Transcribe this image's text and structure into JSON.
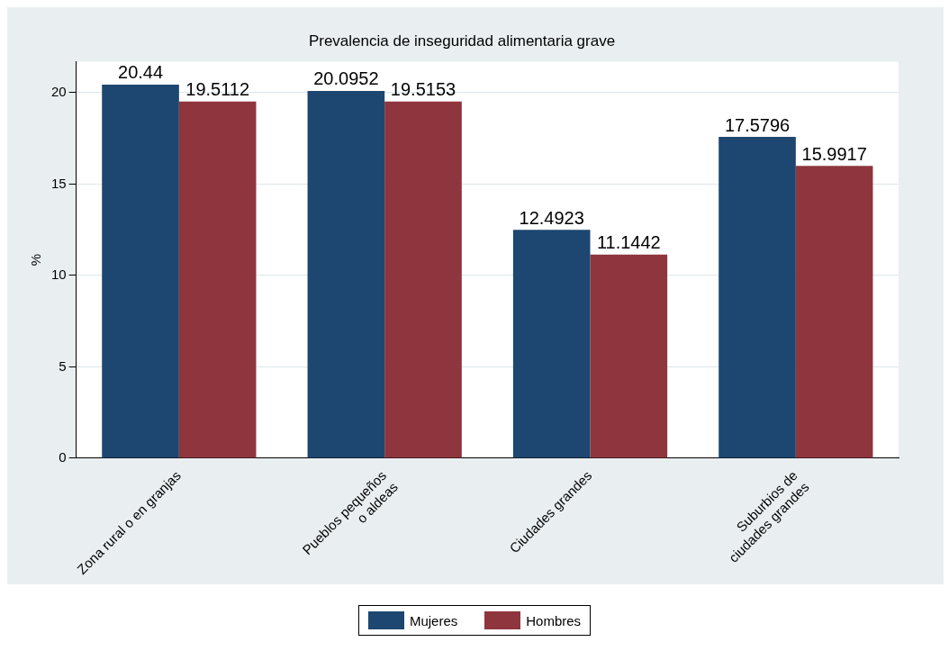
{
  "chart_data": {
    "type": "bar",
    "title": "Prevalencia de inseguridad alimentaria grave",
    "ylabel": "%",
    "categories": [
      "Zona rural o en granjas",
      "Pueblos pequeños\no aldeas",
      "Ciudades grandes",
      "Suburbios de\nciudades grandes"
    ],
    "series": [
      {
        "name": "Mujeres",
        "color": "#1d4770",
        "values": [
          20.44,
          20.0952,
          12.4923,
          17.5796
        ]
      },
      {
        "name": "Hombres",
        "color": "#8e353d",
        "values": [
          19.5112,
          19.5153,
          11.1442,
          15.9917
        ]
      }
    ],
    "ylim": [
      0,
      21.7
    ],
    "yticks": [
      0,
      5,
      10,
      15,
      20
    ],
    "grid": "y",
    "legend": "bottom",
    "data_labels": true
  }
}
